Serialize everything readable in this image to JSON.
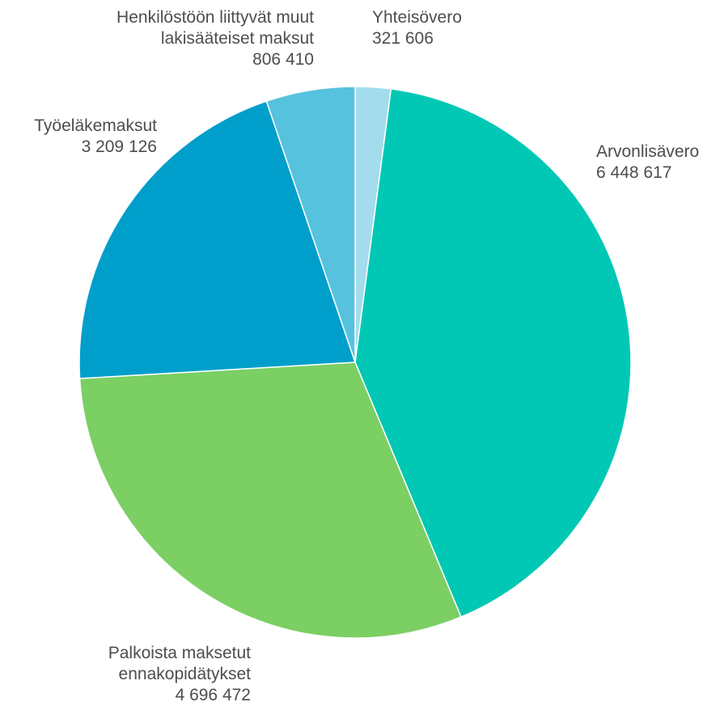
{
  "chart_data": {
    "type": "pie",
    "title": "",
    "start_angle_deg": 0,
    "direction": "clockwise",
    "slices": [
      {
        "label": [
          "Yhteisövero"
        ],
        "value": 321606,
        "value_label": "321 606",
        "color": "#a3dcec"
      },
      {
        "label": [
          "Arvonlisävero"
        ],
        "value": 6448617,
        "value_label": "6 448 617",
        "color": "#00c8b4"
      },
      {
        "label": [
          "Palkoista maksetut",
          "ennakopidätykset"
        ],
        "value": 4696472,
        "value_label": "4 696 472",
        "color": "#7bcf63"
      },
      {
        "label": [
          "Työeläkemaksut"
        ],
        "value": 3209126,
        "value_label": "3 209 126",
        "color": "#009fcb"
      },
      {
        "label": [
          "Henkilöstöön liittyvät muut",
          "lakisääteiset maksut"
        ],
        "value": 806410,
        "value_label": "806 410",
        "color": "#56c2de"
      }
    ],
    "slice_separator_color": "#ffffff"
  }
}
